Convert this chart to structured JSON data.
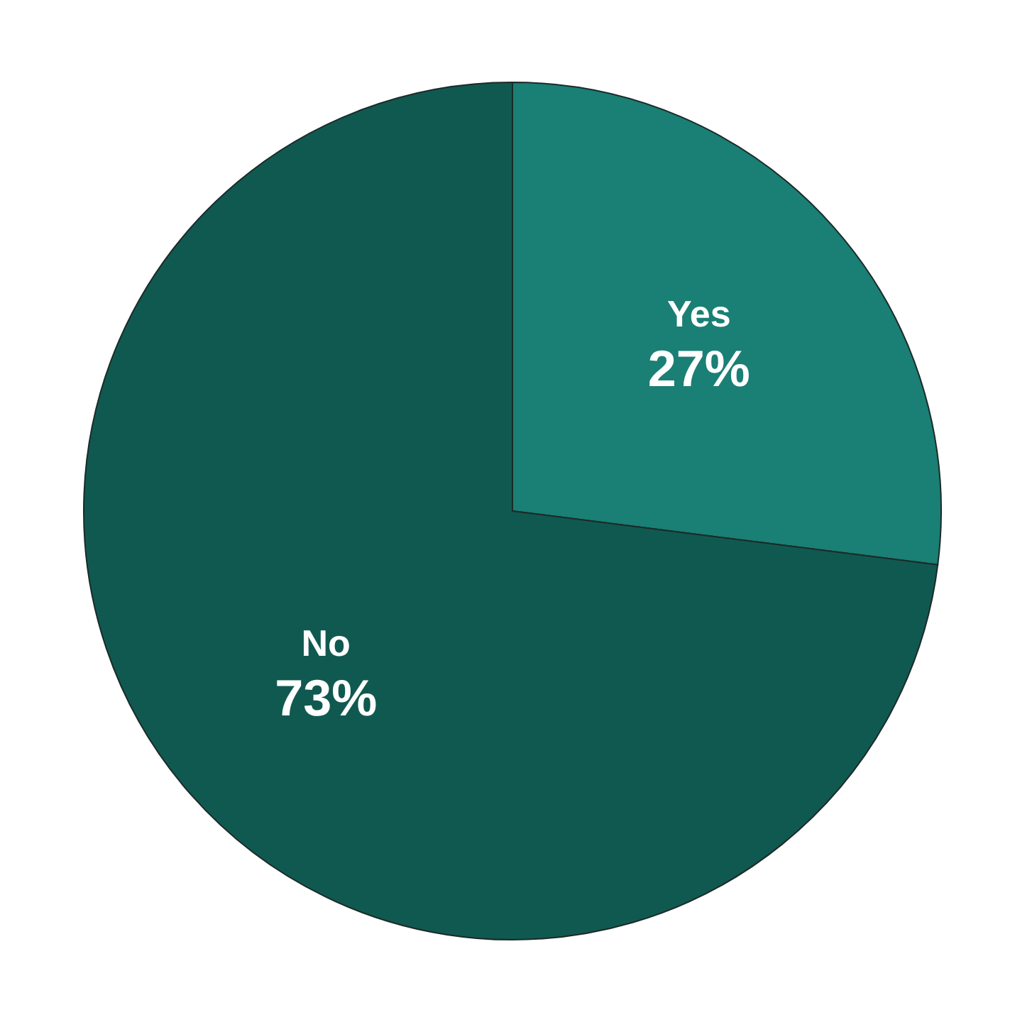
{
  "chart_data": {
    "type": "pie",
    "categories": [
      "Yes",
      "No"
    ],
    "values": [
      27,
      73
    ],
    "colors": [
      "#1a7f74",
      "#105951"
    ],
    "value_labels": [
      "27%",
      "73%"
    ]
  }
}
